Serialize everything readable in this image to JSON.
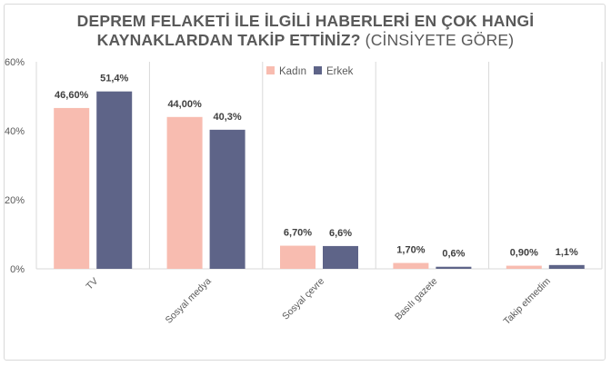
{
  "chart_data": {
    "type": "bar",
    "title_bold": "DEPREM FELAKETİ İLE İLGİLİ HABERLERİ EN ÇOK HANGİ KAYNAKLARDAN TAKİP ETTİNİZ?",
    "title_rest": "(CİNSİYETE GÖRE)",
    "categories": [
      "TV",
      "Sosyal medya",
      "Sosyal çevre",
      "Basılı gazete",
      "Takip etmedim"
    ],
    "series": [
      {
        "name": "Kadın",
        "color": "#F8BCB0",
        "values": [
          46.6,
          44.0,
          6.7,
          1.7,
          0.9
        ],
        "labels": [
          "46,60%",
          "44,00%",
          "6,70%",
          "1,70%",
          "0,90%"
        ]
      },
      {
        "name": "Erkek",
        "color": "#5E6488",
        "values": [
          51.4,
          40.3,
          6.6,
          0.6,
          1.1
        ],
        "labels": [
          "51,4%",
          "40,3%",
          "6,6%",
          "0,6%",
          "1,1%"
        ]
      }
    ],
    "yticks": [
      "0%",
      "20%",
      "40%",
      "60%"
    ],
    "ylim": [
      0,
      60
    ],
    "grid": false,
    "legend": "top-center"
  }
}
